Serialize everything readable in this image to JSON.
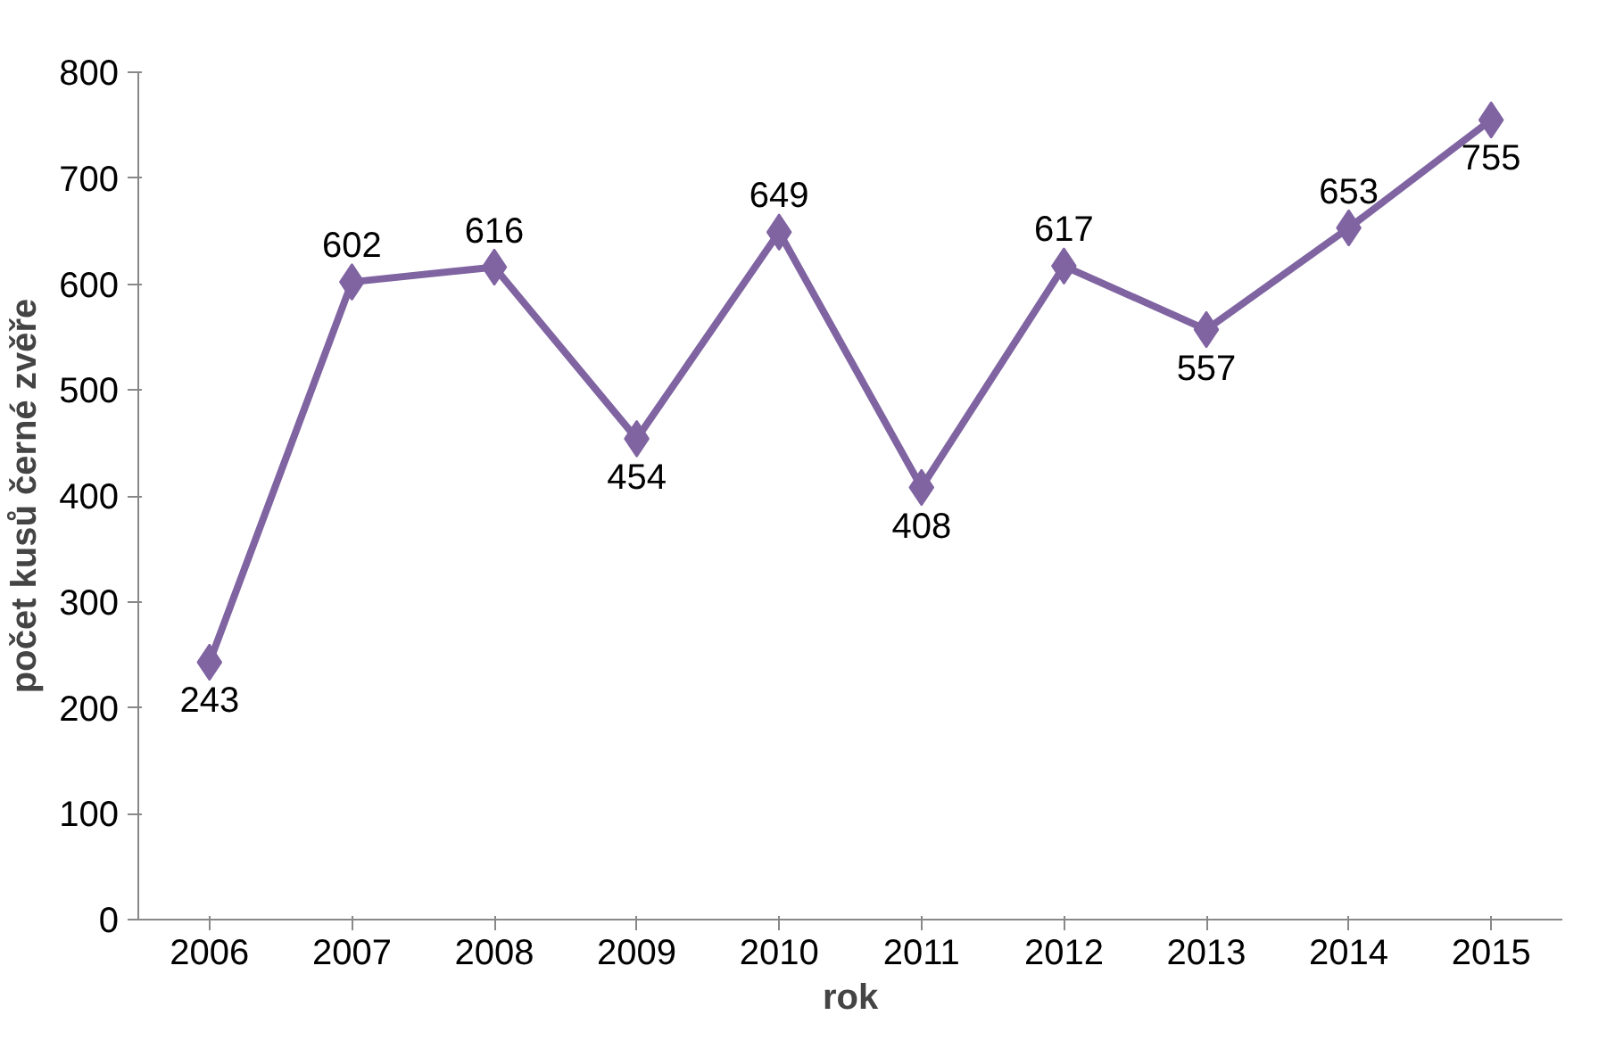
{
  "chart_data": {
    "type": "line",
    "xlabel": "rok",
    "ylabel": "počet kusů černé zvěře",
    "categories": [
      "2006",
      "2007",
      "2008",
      "2009",
      "2010",
      "2011",
      "2012",
      "2013",
      "2014",
      "2015"
    ],
    "series": [
      {
        "color": "#8064a2",
        "values": [
          243,
          602,
          616,
          454,
          649,
          408,
          617,
          557,
          653,
          755
        ]
      }
    ],
    "ylim": [
      0,
      800
    ],
    "yticks": [
      0,
      100,
      200,
      300,
      400,
      500,
      600,
      700,
      800
    ],
    "grid": false,
    "marker": "diamond",
    "line_style": "solid",
    "data_labels": true
  }
}
